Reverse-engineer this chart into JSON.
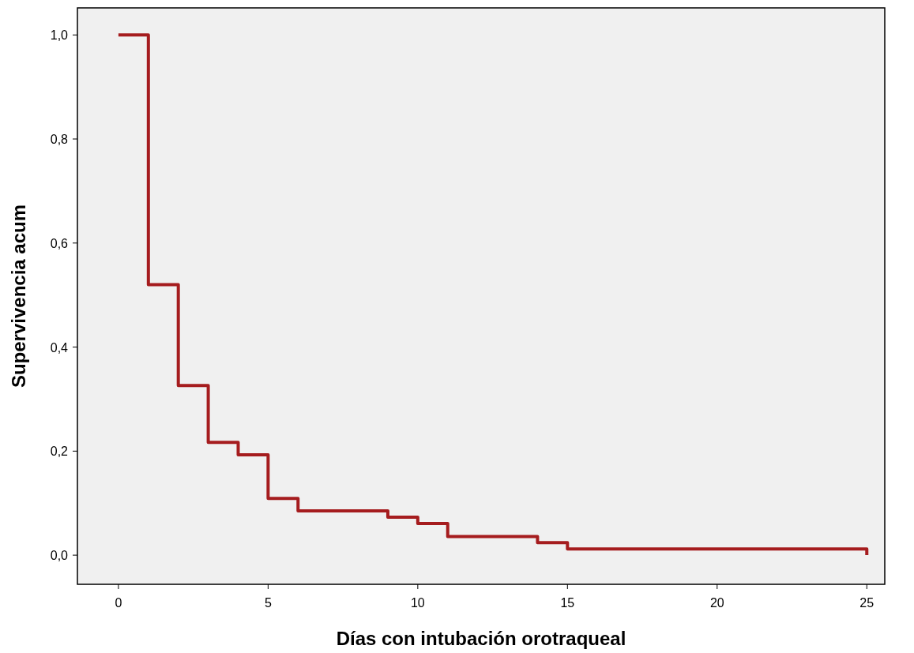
{
  "chart_data": {
    "type": "step",
    "xlabel": "Días con intubación orotraqueal",
    "ylabel": "Supervivencia acum",
    "x": [
      0,
      1,
      2,
      3,
      4,
      5,
      6,
      9,
      10,
      11,
      14,
      15,
      25
    ],
    "values": [
      1.0,
      0.52,
      0.326,
      0.217,
      0.193,
      0.109,
      0.085,
      0.073,
      0.061,
      0.036,
      0.024,
      0.012,
      0.0
    ],
    "color": "#a51c1e",
    "xlim": [
      -1.37,
      25.6
    ],
    "xticks": [
      0,
      5,
      10,
      15,
      20,
      25
    ],
    "ylim": [
      -0.056,
      1.052
    ],
    "yticks": [
      {
        "value": 0,
        "label": "0,0"
      },
      {
        "value": 0.2,
        "label": "0,2"
      },
      {
        "value": 0.4,
        "label": "0,4"
      },
      {
        "value": 0.6,
        "label": "0,6"
      },
      {
        "value": 0.8,
        "label": "0,8"
      },
      {
        "value": 1,
        "label": "1,0"
      }
    ],
    "grid": false,
    "marker": "none",
    "line_style": "solid"
  }
}
